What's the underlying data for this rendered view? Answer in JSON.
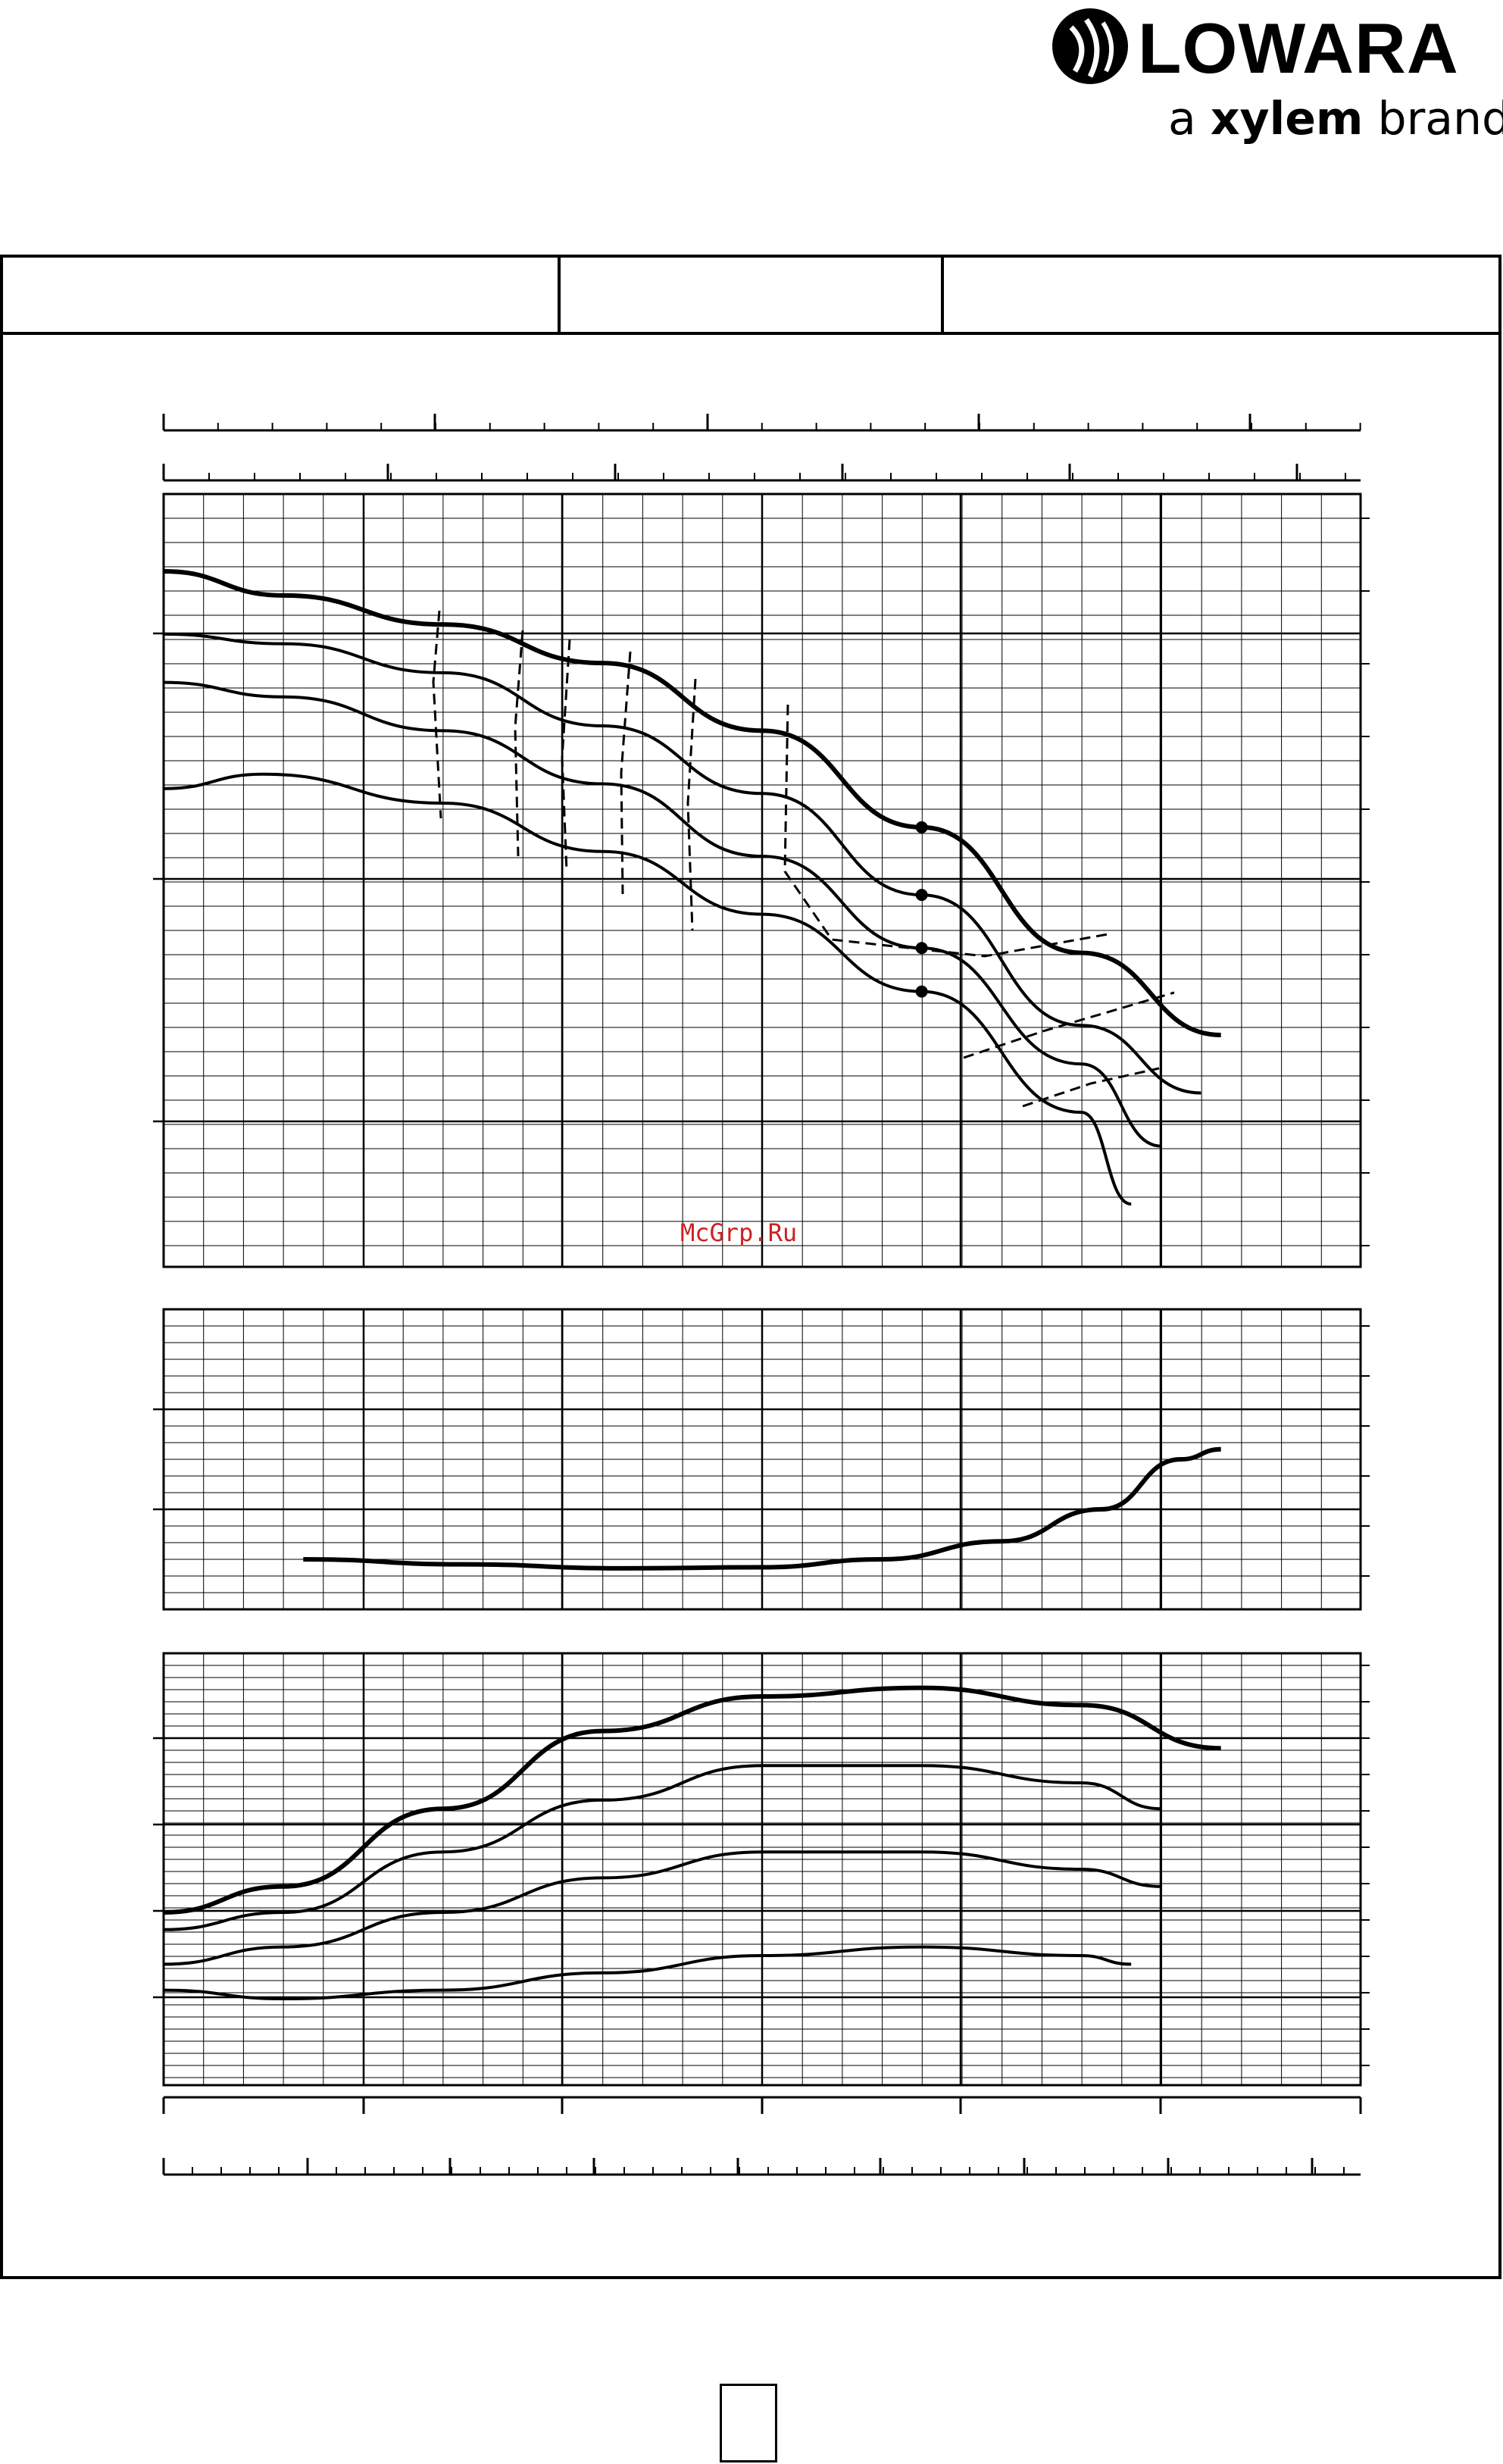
{
  "header": {
    "brand_name": "LOWARA",
    "brand_tagline_prefix": "a ",
    "brand_tagline_bold": "xylem",
    "brand_tagline_suffix": " brand"
  },
  "watermark": "McGrp.Ru",
  "colors": {
    "line": "#000000",
    "watermark": "#cc2222",
    "background": "#ffffff"
  },
  "chart_data": [
    {
      "type": "line",
      "title": "",
      "xlabel": "",
      "ylabel": "",
      "xlim": [
        0,
        6
      ],
      "ylim": [
        0,
        16
      ],
      "grid": true,
      "series": [
        {
          "x": [
            0,
            0.6,
            1.4,
            2.2,
            3.0,
            3.8,
            4.6,
            5.3
          ],
          "y": [
            14.4,
            13.9,
            13.3,
            12.5,
            11.1,
            9.1,
            6.5,
            4.8
          ]
        },
        {
          "x": [
            0,
            0.6,
            1.4,
            2.2,
            3.0,
            3.8,
            4.6,
            5.2
          ],
          "y": [
            13.1,
            12.9,
            12.3,
            11.2,
            9.8,
            7.7,
            5.0,
            3.6
          ]
        },
        {
          "x": [
            0,
            0.6,
            1.4,
            2.2,
            3.0,
            3.8,
            4.6,
            5.0
          ],
          "y": [
            12.1,
            11.8,
            11.1,
            10.0,
            8.5,
            6.6,
            4.2,
            2.5
          ]
        },
        {
          "x": [
            0,
            0.5,
            1.4,
            2.2,
            3.0,
            3.8,
            4.6,
            4.85
          ],
          "y": [
            9.9,
            10.2,
            9.6,
            8.6,
            7.3,
            5.7,
            3.2,
            1.3
          ]
        }
      ]
    },
    {
      "type": "line",
      "title": "",
      "xlabel": "",
      "ylabel": "",
      "xlim": [
        0,
        6
      ],
      "ylim": [
        0,
        3
      ],
      "grid": true,
      "series": [
        {
          "x": [
            0.7,
            1.5,
            2.3,
            3.0,
            3.6,
            4.2,
            4.7,
            5.1,
            5.3
          ],
          "y": [
            0.5,
            0.45,
            0.41,
            0.42,
            0.5,
            0.68,
            1.0,
            1.5,
            1.6
          ]
        }
      ]
    },
    {
      "type": "line",
      "title": "",
      "xlabel": "",
      "ylabel": "",
      "xlim": [
        0,
        6
      ],
      "ylim": [
        0,
        5
      ],
      "grid": true,
      "series": [
        {
          "x": [
            0,
            0.6,
            1.4,
            2.2,
            3.0,
            3.8,
            4.6,
            5.3
          ],
          "y": [
            2.0,
            2.3,
            3.2,
            4.1,
            4.5,
            4.6,
            4.4,
            3.9
          ]
        },
        {
          "x": [
            0,
            0.6,
            1.4,
            2.2,
            3.0,
            3.8,
            4.6,
            5.0
          ],
          "y": [
            1.8,
            2.0,
            2.7,
            3.3,
            3.7,
            3.7,
            3.5,
            3.2
          ]
        },
        {
          "x": [
            0,
            0.6,
            1.4,
            2.2,
            3.0,
            3.8,
            4.6,
            5.0
          ],
          "y": [
            1.4,
            1.6,
            2.0,
            2.4,
            2.7,
            2.7,
            2.5,
            2.3
          ]
        },
        {
          "x": [
            0,
            0.6,
            1.4,
            2.2,
            3.0,
            3.8,
            4.6,
            4.85
          ],
          "y": [
            1.1,
            1.0,
            1.1,
            1.3,
            1.5,
            1.6,
            1.5,
            1.4
          ]
        }
      ]
    }
  ]
}
